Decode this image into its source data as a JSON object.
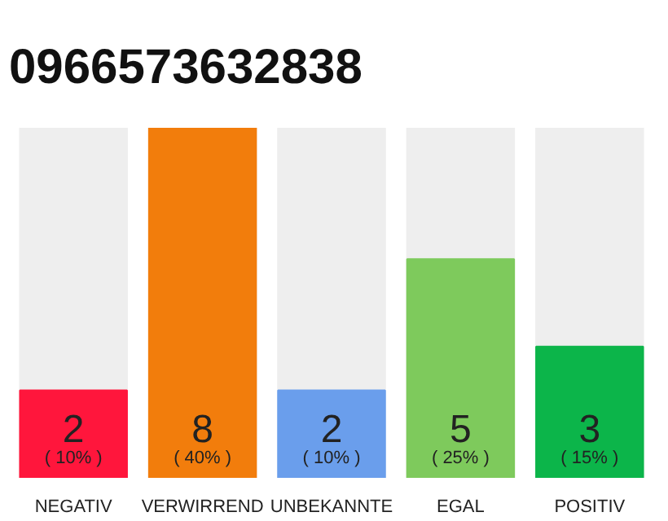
{
  "chart_data": {
    "type": "bar",
    "title": "0966573632838",
    "categories": [
      "NEGATIV",
      "VERWIRREND",
      "UNBEKANNTE",
      "EGAL",
      "POSITIV"
    ],
    "values": [
      10,
      40,
      10,
      25,
      15
    ],
    "colors": [
      "#ff163c",
      "#f27d0c",
      "#6a9eec",
      "#7eca5c",
      "#0cb54a"
    ],
    "value_labels": [
      "( 10% )",
      "( 40% )",
      "( 10% )",
      "( 25% )",
      "( 15% )"
    ],
    "annotations": [
      "2",
      "8",
      "2",
      "5",
      "3"
    ],
    "grid": false,
    "tick_labels": "x"
  }
}
